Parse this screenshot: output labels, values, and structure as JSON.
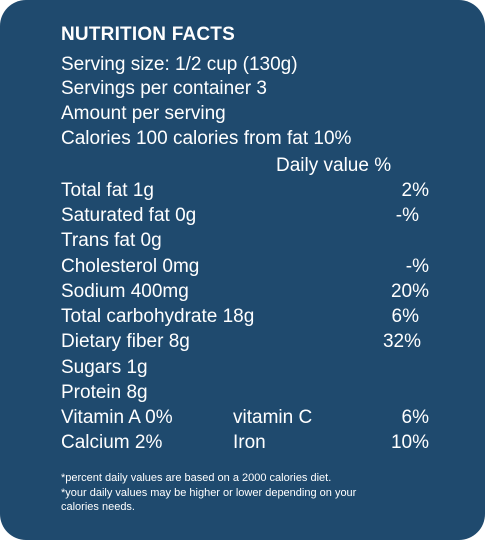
{
  "title": "NUTRITION FACTS",
  "serving_size": "Serving size: 1/2 cup (130g)",
  "servings_per_container": "Servings per container 3",
  "amount_per_serving": "Amount per serving",
  "calories_line": "Calories 100 calories from fat 10%",
  "daily_value_header": "Daily value %",
  "nutrients": [
    {
      "label": "Total fat 1g",
      "pct": "2%"
    },
    {
      "label": "Saturated fat 0g",
      "pct": "-%"
    },
    {
      "label": "Trans fat 0g",
      "pct": ""
    },
    {
      "label": "Cholesterol 0mg",
      "pct": "-%"
    },
    {
      "label": "Sodium 400mg",
      "pct": "20%"
    },
    {
      "label": "Total carbohydrate 18g",
      "pct": "6%"
    },
    {
      "label": "Dietary fiber 8g",
      "pct": "32%"
    },
    {
      "label": "Sugars 1g",
      "pct": ""
    },
    {
      "label": "Protein 8g",
      "pct": ""
    }
  ],
  "vitamins": [
    {
      "left": "Vitamin A 0%",
      "middle": "vitamin C",
      "right": "6%"
    },
    {
      "left": "Calcium 2%",
      "middle": "Iron",
      "right": "10%"
    }
  ],
  "footnotes": [
    "*percent daily values are based on a 2000 calories diet.",
    "*your daily values may be higher or lower depending on your",
    "calories needs."
  ],
  "colors": {
    "panel_background": "#1f4a6e",
    "text": "#ffffff"
  }
}
